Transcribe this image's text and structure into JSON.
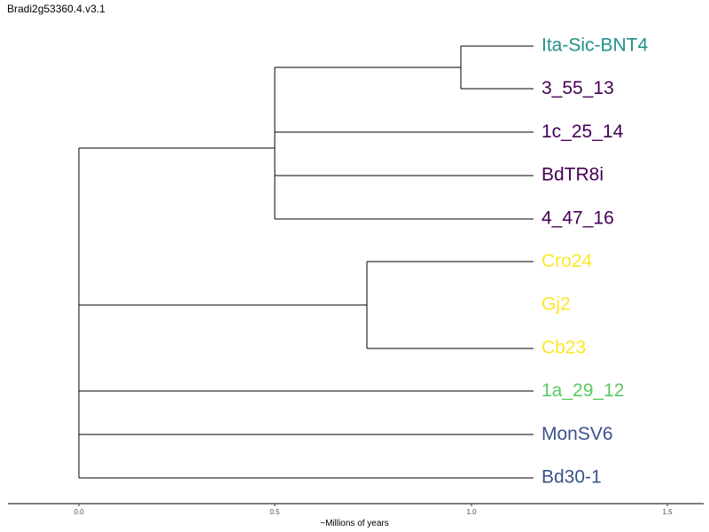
{
  "title": "Bradi2g53360.4.v3.1",
  "axis": {
    "title": "~Millions of years",
    "ticks": [
      "0.0",
      "0.5",
      "1.0",
      "1.5"
    ]
  },
  "tips": [
    {
      "label": "Ita-Sic-BNT4",
      "color": "#21908C"
    },
    {
      "label": "3_55_13",
      "color": "#440154"
    },
    {
      "label": "1c_25_14",
      "color": "#440154"
    },
    {
      "label": "BdTR8i",
      "color": "#440154"
    },
    {
      "label": "4_47_16",
      "color": "#440154"
    },
    {
      "label": "Cro24",
      "color": "#FDE725"
    },
    {
      "label": "Gj2",
      "color": "#FDE725"
    },
    {
      "label": "Cb23",
      "color": "#FDE725"
    },
    {
      "label": "1a_29_12",
      "color": "#5DC863"
    },
    {
      "label": "MonSV6",
      "color": "#3B528B"
    },
    {
      "label": "Bd30-1",
      "color": "#3B528B"
    }
  ]
}
